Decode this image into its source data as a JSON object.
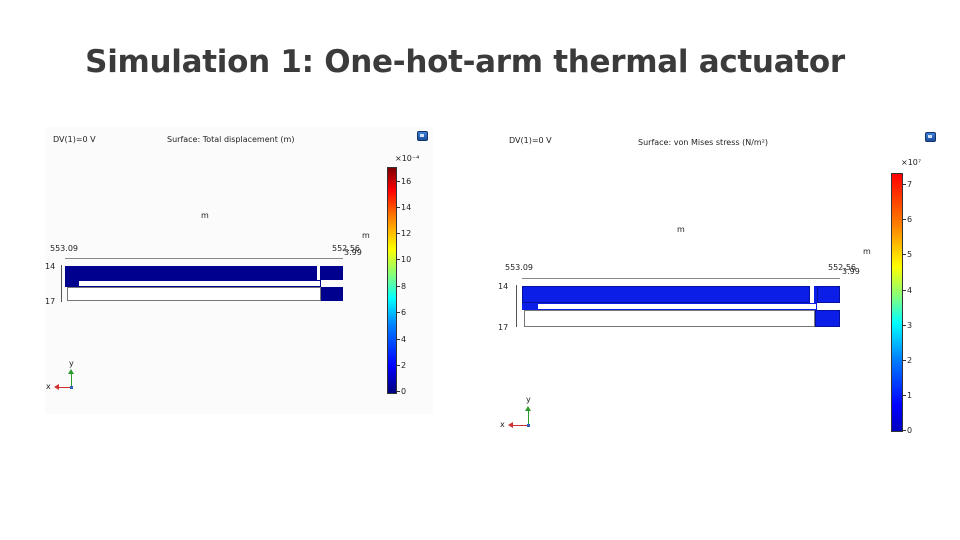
{
  "slide": {
    "title": "Simulation 1: One-hot-arm thermal actuator"
  },
  "left_plot": {
    "parameter_label": "DV(1)=0 V",
    "surface_label": "Surface: Total displacement (m)",
    "unit_m_top": "m",
    "unit_m_side": "m",
    "x_left": "553.09",
    "x_right": "552.56",
    "x_right_overlap": "3.99",
    "y_upper": "14",
    "y_lower": "17",
    "colorbar": {
      "exponent": "×10⁻⁴",
      "ticks": [
        "16",
        "14",
        "12",
        "10",
        "8",
        "6",
        "4",
        "2",
        "0"
      ]
    },
    "triad": {
      "x_label": "x",
      "y_label": "y"
    },
    "export_icon": "export-image-icon"
  },
  "right_plot": {
    "parameter_label": "DV(1)=0 V",
    "surface_label": "Surface: von Mises stress (N/m²)",
    "unit_m_top": "m",
    "unit_m_side": "m",
    "x_left": "553.09",
    "x_right": "552.56",
    "x_right_overlap": "3.99",
    "y_upper": "14",
    "y_lower": "17",
    "colorbar": {
      "exponent": "×10⁷",
      "ticks": [
        "7",
        "6",
        "5",
        "4",
        "3",
        "2",
        "1",
        "0"
      ]
    },
    "triad": {
      "x_label": "x",
      "y_label": "y"
    },
    "export_icon": "export-image-icon"
  },
  "colors": {
    "beam_dark": "#00008f",
    "beam_blue": "#0a1ee8",
    "title": "#3b3b3b"
  }
}
